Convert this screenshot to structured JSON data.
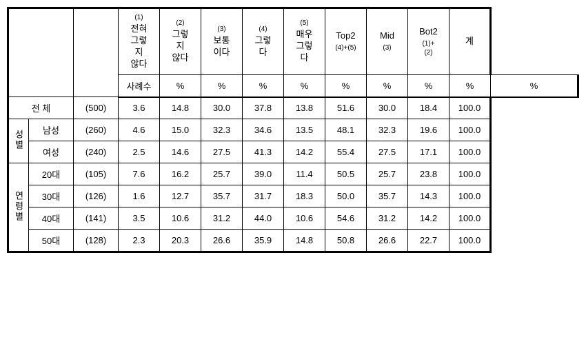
{
  "columns": {
    "c1": {
      "sup": "(1)",
      "label": "전혀\n그렇\n지\n않다"
    },
    "c2": {
      "sup": "(2)",
      "label": "그렇\n지\n않다"
    },
    "c3": {
      "sup": "(3)",
      "label": "보통\n이다"
    },
    "c4": {
      "sup": "(4)",
      "label": "그렇\n다"
    },
    "c5": {
      "sup": "(5)",
      "label": "매우\n그렇\n다"
    },
    "top2": {
      "label": "Top2",
      "sub": "(4)+(5)"
    },
    "mid": {
      "label": "Mid",
      "sub": "(3)"
    },
    "bot2": {
      "label": "Bot2",
      "sub": "(1)+\n(2)"
    },
    "total": {
      "label": "계"
    },
    "n_label": "사례수",
    "pct": "%"
  },
  "groups": {
    "overall": "전 체",
    "gender": "성별",
    "age": "연령별"
  },
  "rows": {
    "overall": {
      "label": "전 체",
      "n": "(500)",
      "v": [
        "3.6",
        "14.8",
        "30.0",
        "37.8",
        "13.8",
        "51.6",
        "30.0",
        "18.4",
        "100.0"
      ]
    },
    "male": {
      "label": "남성",
      "n": "(260)",
      "v": [
        "4.6",
        "15.0",
        "32.3",
        "34.6",
        "13.5",
        "48.1",
        "32.3",
        "19.6",
        "100.0"
      ]
    },
    "female": {
      "label": "여성",
      "n": "(240)",
      "v": [
        "2.5",
        "14.6",
        "27.5",
        "41.3",
        "14.2",
        "55.4",
        "27.5",
        "17.1",
        "100.0"
      ]
    },
    "a20": {
      "label": "20대",
      "n": "(105)",
      "v": [
        "7.6",
        "16.2",
        "25.7",
        "39.0",
        "11.4",
        "50.5",
        "25.7",
        "23.8",
        "100.0"
      ]
    },
    "a30": {
      "label": "30대",
      "n": "(126)",
      "v": [
        "1.6",
        "12.7",
        "35.7",
        "31.7",
        "18.3",
        "50.0",
        "35.7",
        "14.3",
        "100.0"
      ]
    },
    "a40": {
      "label": "40대",
      "n": "(141)",
      "v": [
        "3.5",
        "10.6",
        "31.2",
        "44.0",
        "10.6",
        "54.6",
        "31.2",
        "14.2",
        "100.0"
      ]
    },
    "a50": {
      "label": "50대",
      "n": "(128)",
      "v": [
        "2.3",
        "20.3",
        "26.6",
        "35.9",
        "14.8",
        "50.8",
        "26.6",
        "22.7",
        "100.0"
      ]
    }
  }
}
